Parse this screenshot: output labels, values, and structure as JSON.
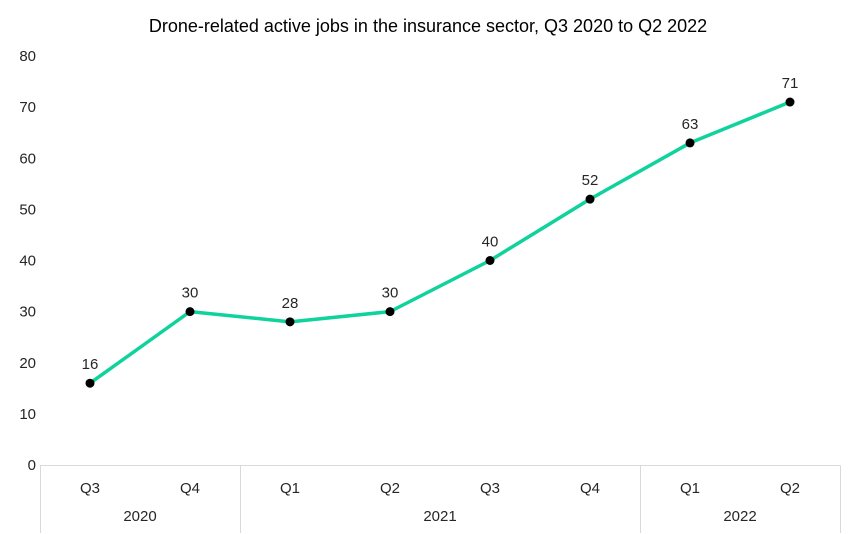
{
  "chart_data": {
    "type": "line",
    "title": "Drone-related active jobs in the insurance sector, Q3 2020 to Q2 2022",
    "categories": [
      "Q3",
      "Q4",
      "Q1",
      "Q2",
      "Q3",
      "Q4",
      "Q1",
      "Q2"
    ],
    "year_groups": [
      {
        "label": "2020",
        "span": 2
      },
      {
        "label": "2021",
        "span": 4
      },
      {
        "label": "2022",
        "span": 2
      }
    ],
    "series": [
      {
        "values": [
          16,
          30,
          28,
          30,
          40,
          52,
          63,
          71
        ]
      }
    ],
    "data_labels_shown": true,
    "yticks": [
      0,
      10,
      20,
      30,
      40,
      50,
      60,
      70,
      80
    ],
    "ylim": [
      0,
      80
    ],
    "grid": false,
    "legend": false,
    "colors": {
      "line": "#0fd29c",
      "marker": "#000000",
      "axis_line": "#d9d9d9",
      "tick_label": "#262626",
      "data_label": "#262626",
      "title": "#000000",
      "background": "#ffffff"
    }
  }
}
